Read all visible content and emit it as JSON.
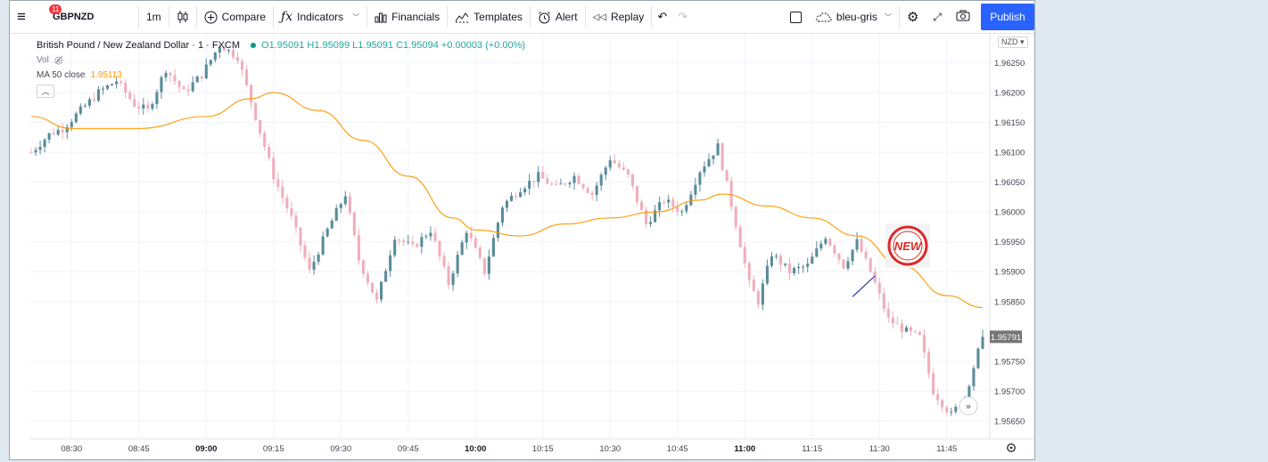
{
  "toolbar": {
    "notification_count": "11",
    "symbol": "GBPNZD",
    "interval": "1m",
    "compare_label": "Compare",
    "indicators_label": "Indicators",
    "financials_label": "Financials",
    "templates_label": "Templates",
    "alert_label": "Alert",
    "replay_label": "Replay",
    "layout_name": "bleu-gris",
    "publish_label": "Publish"
  },
  "legend": {
    "instrument": "British Pound / New Zealand Dollar · 1 · FXCM",
    "ohlc": "O1.95091  H1.95099  L1.95091  C1.95094  +0.00003 (+0.00%)",
    "volume_label": "Vol",
    "ma_label": "MA 50 close",
    "ma_value": "1.95113"
  },
  "price_axis": {
    "currency": "NZD",
    "last_price": "1.95791"
  },
  "annotation": {
    "badge_text": "NEW"
  },
  "colors": {
    "up": "#5b8c9a",
    "down": "#efafbd",
    "ma": "#ff9800",
    "trendline": "#3c3fb8",
    "price_label_bg": "#767676",
    "accent": "#2962ff"
  },
  "chart_data": {
    "type": "candlestick",
    "title": "British Pound / New Zealand Dollar · 1 · FXCM",
    "series_names": [
      "GBPNZD",
      "MA 50 close"
    ],
    "ylim": [
      1.9562,
      1.963
    ],
    "y_ticks": [
      1.9565,
      1.957,
      1.9575,
      1.9585,
      1.959,
      1.9595,
      1.96,
      1.9605,
      1.961,
      1.9615,
      1.962,
      1.9625
    ],
    "y_tick_labels": [
      "1.95650",
      "1.95700",
      "1.95750",
      "1.95850",
      "1.95900",
      "1.95950",
      "1.96000",
      "1.96050",
      "1.96100",
      "1.96150",
      "1.96200",
      "1.96250"
    ],
    "x_ticks": [
      "08:30",
      "08:45",
      "09:00",
      "09:15",
      "09:30",
      "09:45",
      "10:00",
      "10:15",
      "10:30",
      "10:45",
      "11:00",
      "11:15",
      "11:30",
      "11:45"
    ],
    "x_ticks_bold": [
      "09:00",
      "10:00",
      "11:00"
    ],
    "x_start": "08:21",
    "x_end": "11:53",
    "last_price": 1.95791,
    "price_anchors": [
      [
        "08:21",
        1.961
      ],
      [
        "08:25",
        1.9613
      ],
      [
        "08:28",
        1.9614
      ],
      [
        "08:32",
        1.9617
      ],
      [
        "08:36",
        1.962
      ],
      [
        "08:40",
        1.9622
      ],
      [
        "08:44",
        1.9618
      ],
      [
        "08:47",
        1.9617
      ],
      [
        "08:51",
        1.9624
      ],
      [
        "08:55",
        1.962
      ],
      [
        "08:59",
        1.9623
      ],
      [
        "09:03",
        1.9628
      ],
      [
        "09:07",
        1.9626
      ],
      [
        "09:11",
        1.9616
      ],
      [
        "09:15",
        1.9606
      ],
      [
        "09:19",
        1.9599
      ],
      [
        "09:23",
        1.959
      ],
      [
        "09:27",
        1.9597
      ],
      [
        "09:31",
        1.9603
      ],
      [
        "09:34",
        1.9592
      ],
      [
        "09:38",
        1.9585
      ],
      [
        "09:42",
        1.9596
      ],
      [
        "09:46",
        1.9594
      ],
      [
        "09:50",
        1.9597
      ],
      [
        "09:54",
        1.9588
      ],
      [
        "09:58",
        1.9597
      ],
      [
        "10:02",
        1.959
      ],
      [
        "10:06",
        1.9601
      ],
      [
        "10:10",
        1.9604
      ],
      [
        "10:14",
        1.9606
      ],
      [
        "10:18",
        1.9604
      ],
      [
        "10:22",
        1.9606
      ],
      [
        "10:26",
        1.9603
      ],
      [
        "10:30",
        1.9609
      ],
      [
        "10:34",
        1.9606
      ],
      [
        "10:38",
        1.9598
      ],
      [
        "10:42",
        1.9602
      ],
      [
        "10:46",
        1.96
      ],
      [
        "10:50",
        1.9607
      ],
      [
        "10:54",
        1.9611
      ],
      [
        "10:58",
        1.9598
      ],
      [
        "11:01",
        1.9588
      ],
      [
        "11:03",
        1.9585
      ],
      [
        "11:06",
        1.9593
      ],
      [
        "11:10",
        1.959
      ],
      [
        "11:14",
        1.9591
      ],
      [
        "11:18",
        1.9596
      ],
      [
        "11:22",
        1.9591
      ],
      [
        "11:25",
        1.9595
      ],
      [
        "11:28",
        1.959
      ],
      [
        "11:32",
        1.9582
      ],
      [
        "11:36",
        1.958
      ],
      [
        "11:39",
        1.9579
      ],
      [
        "11:42",
        1.957
      ],
      [
        "11:46",
        1.9566
      ],
      [
        "11:49",
        1.9569
      ],
      [
        "11:53",
        1.95791
      ]
    ],
    "ma50": [
      [
        "08:21",
        1.9616
      ],
      [
        "08:30",
        1.9614
      ],
      [
        "08:45",
        1.9614
      ],
      [
        "09:00",
        1.9616
      ],
      [
        "09:10",
        1.9619
      ],
      [
        "09:15",
        1.962
      ],
      [
        "09:25",
        1.9617
      ],
      [
        "09:35",
        1.9612
      ],
      [
        "09:45",
        1.9606
      ],
      [
        "09:55",
        1.9599
      ],
      [
        "10:00",
        1.9597
      ],
      [
        "10:10",
        1.9596
      ],
      [
        "10:20",
        1.9598
      ],
      [
        "10:30",
        1.9599
      ],
      [
        "10:40",
        1.96
      ],
      [
        "10:50",
        1.9602
      ],
      [
        "10:55",
        1.9603
      ],
      [
        "11:05",
        1.9601
      ],
      [
        "11:15",
        1.9599
      ],
      [
        "11:25",
        1.9596
      ],
      [
        "11:35",
        1.9591
      ],
      [
        "11:45",
        1.9586
      ],
      [
        "11:53",
        1.9584
      ]
    ],
    "trendline": [
      [
        "11:24",
        1.95858
      ],
      [
        "11:29",
        1.95893
      ]
    ]
  }
}
